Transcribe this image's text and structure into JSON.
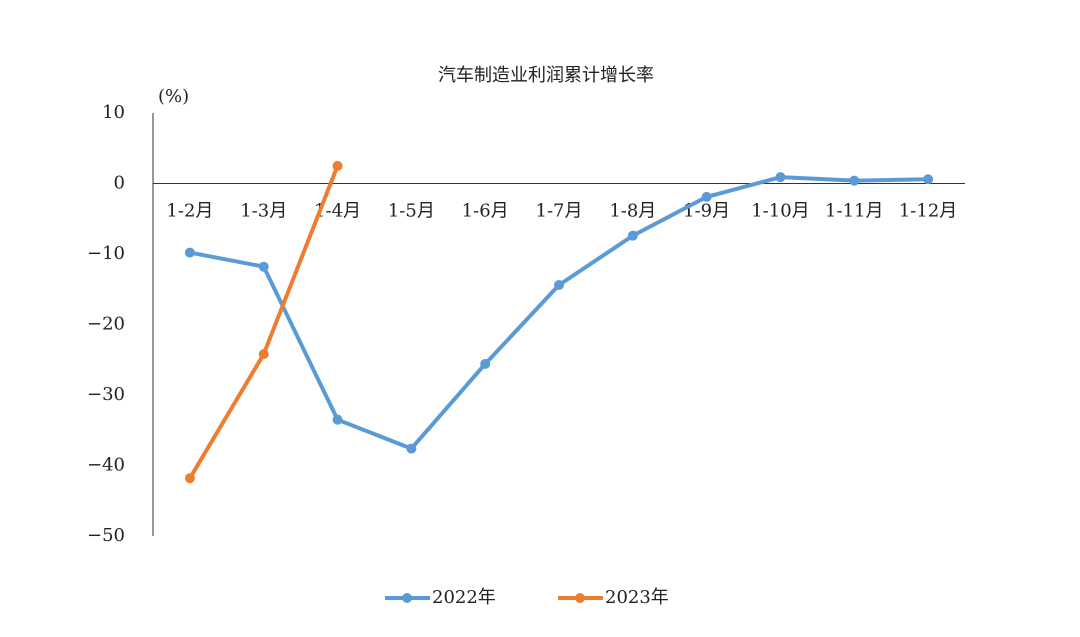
{
  "chart_data": {
    "type": "line",
    "title": "汽车制造业利润累计增长率",
    "y_unit": "(%)",
    "categories": [
      "1-2月",
      "1-3月",
      "1-4月",
      "1-5月",
      "1-6月",
      "1-7月",
      "1-8月",
      "1-9月",
      "1-10月",
      "1-11月",
      "1-12月"
    ],
    "series": [
      {
        "name": "2022年",
        "color": "#5b9bd5",
        "values": [
          -9.8,
          -11.8,
          -33.5,
          -37.6,
          -25.6,
          -14.4,
          -7.4,
          -1.9,
          0.9,
          0.4,
          0.6
        ]
      },
      {
        "name": "2023年",
        "color": "#ed7d31",
        "values": [
          -41.8,
          -24.2,
          2.5,
          null,
          null,
          null,
          null,
          null,
          null,
          null,
          null
        ]
      }
    ],
    "ylim": [
      -50,
      10
    ],
    "yticks": [
      10,
      0,
      {
        "value": -10,
        "label": "−10"
      },
      {
        "value": -20,
        "label": "−20"
      },
      {
        "value": -30,
        "label": "−30"
      },
      {
        "value": -40,
        "label": "−40"
      },
      {
        "value": -50,
        "label": "−50"
      }
    ],
    "negative_tick_color": "#ff0000",
    "grid": false,
    "legend": "bottom"
  }
}
